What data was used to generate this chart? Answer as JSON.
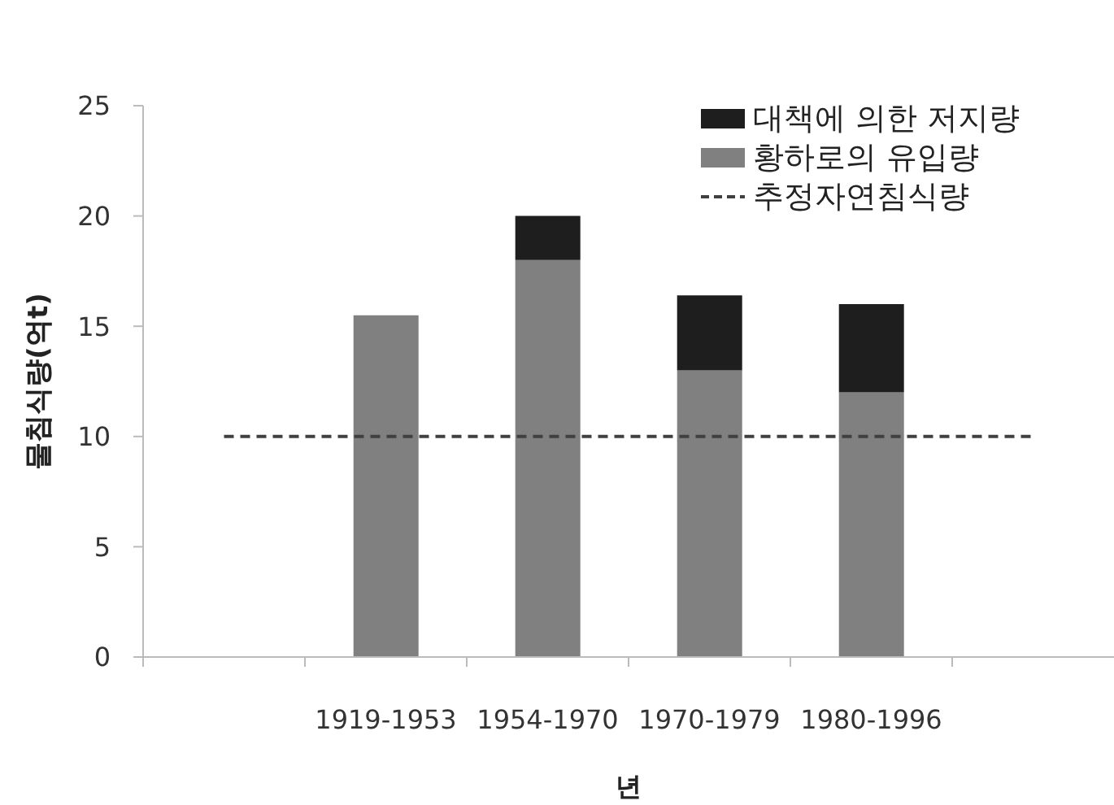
{
  "chart_data": {
    "type": "bar",
    "categories": [
      null,
      "1919-1953",
      "1954-1970",
      "1970-1979",
      "1980-1996",
      null
    ],
    "series": [
      {
        "name": "황하로의 유입량",
        "color": "#808080",
        "values": [
          null,
          15.5,
          18,
          13,
          12,
          null
        ]
      },
      {
        "name": "대책에 의한 저지량",
        "color": "#1e1e1e",
        "values": [
          null,
          null,
          2,
          3.4,
          4,
          null
        ]
      },
      {
        "name": "추정자연침식량",
        "type": "line",
        "color": "#404040",
        "line_style": "dashed",
        "marker": "none",
        "values": [
          10,
          10,
          10,
          10,
          10,
          10
        ]
      }
    ],
    "stacked": true,
    "xlabel": "년",
    "ylabel": "물침식량(억t)",
    "ylim": [
      0,
      25
    ],
    "yticks": [
      0,
      5,
      10,
      15,
      20,
      25
    ],
    "legend": "top right"
  }
}
